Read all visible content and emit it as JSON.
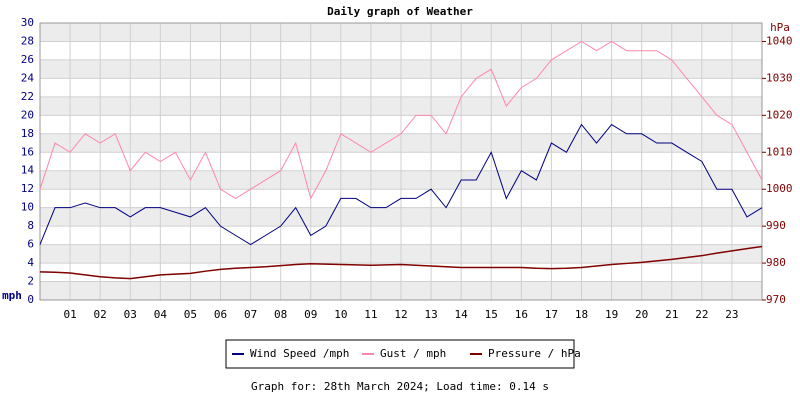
{
  "chart_data": {
    "type": "line",
    "title": "Daily graph of Weather",
    "y_label": "mph",
    "y2_label": "hPa",
    "footer": "Graph for: 28th March 2024; Load time: 0.14 s",
    "x": [
      0,
      0.5,
      1,
      1.5,
      2,
      2.5,
      3,
      3.5,
      4,
      4.5,
      5,
      5.5,
      6,
      6.5,
      7,
      7.5,
      8,
      8.5,
      9,
      9.5,
      10,
      10.5,
      11,
      11.5,
      12,
      12.5,
      13,
      13.5,
      14,
      14.5,
      15,
      15.5,
      16,
      16.5,
      17,
      17.5,
      18,
      18.5,
      19,
      19.5,
      20,
      20.5,
      21,
      21.5,
      22,
      22.5,
      23,
      23.5,
      24
    ],
    "xlim": [
      0,
      24
    ],
    "xticks": [
      {
        "value": 1,
        "label": "01"
      },
      {
        "value": 2,
        "label": "02"
      },
      {
        "value": 3,
        "label": "03"
      },
      {
        "value": 4,
        "label": "04"
      },
      {
        "value": 5,
        "label": "05"
      },
      {
        "value": 6,
        "label": "06"
      },
      {
        "value": 7,
        "label": "07"
      },
      {
        "value": 8,
        "label": "08"
      },
      {
        "value": 9,
        "label": "09"
      },
      {
        "value": 10,
        "label": "10"
      },
      {
        "value": 11,
        "label": "11"
      },
      {
        "value": 12,
        "label": "12"
      },
      {
        "value": 13,
        "label": "13"
      },
      {
        "value": 14,
        "label": "14"
      },
      {
        "value": 15,
        "label": "15"
      },
      {
        "value": 16,
        "label": "16"
      },
      {
        "value": 17,
        "label": "17"
      },
      {
        "value": 18,
        "label": "18"
      },
      {
        "value": 19,
        "label": "19"
      },
      {
        "value": 20,
        "label": "20"
      },
      {
        "value": 21,
        "label": "21"
      },
      {
        "value": 22,
        "label": "22"
      },
      {
        "value": 23,
        "label": "23"
      }
    ],
    "ylim": [
      0,
      30
    ],
    "yticks": [
      0,
      2,
      4,
      6,
      8,
      10,
      12,
      14,
      16,
      18,
      20,
      22,
      24,
      26,
      28,
      30
    ],
    "y2lim": [
      970,
      1045
    ],
    "y2ticks": [
      970,
      980,
      990,
      1000,
      1010,
      1020,
      1030,
      1040
    ],
    "series": [
      {
        "name": "Wind Speed /mph",
        "color": "#000080",
        "values": [
          6,
          10,
          10,
          10.5,
          10,
          10,
          9,
          10,
          10,
          9.5,
          9,
          10,
          8,
          7,
          6,
          7,
          8,
          10,
          7,
          8,
          11,
          11,
          10,
          10,
          11,
          11,
          12,
          10,
          13,
          13,
          16,
          11,
          14,
          13,
          17,
          16,
          19,
          17,
          19,
          18,
          18,
          17,
          17,
          16,
          15,
          12,
          12,
          9,
          10
        ]
      },
      {
        "name": "Gust / mph",
        "color": "#ff88aa",
        "values": [
          12,
          17,
          16,
          18,
          17,
          18,
          14,
          16,
          15,
          16,
          13,
          16,
          12,
          11,
          12,
          13,
          14,
          17,
          11,
          14,
          18,
          17,
          16,
          17,
          18,
          20,
          20,
          18,
          22,
          24,
          25,
          21,
          23,
          24,
          26,
          27,
          28,
          27,
          28,
          27,
          27,
          27,
          26,
          24,
          22,
          20,
          19,
          16,
          13
        ]
      },
      {
        "name": "Pressure / hPa",
        "color": "#800000",
        "axis": "y2",
        "values": [
          977.6,
          977.5,
          977.3,
          976.8,
          976.3,
          976,
          975.8,
          976.3,
          976.8,
          977,
          977.2,
          977.8,
          978.3,
          978.6,
          978.8,
          979,
          979.3,
          979.6,
          979.8,
          979.7,
          979.6,
          979.5,
          979.4,
          979.5,
          979.6,
          979.4,
          979.2,
          979,
          978.8,
          978.8,
          978.8,
          978.8,
          978.8,
          978.6,
          978.5,
          978.6,
          978.8,
          979.2,
          979.6,
          979.9,
          980.2,
          980.6,
          981,
          981.5,
          982,
          982.7,
          983.3,
          983.9,
          984.5
        ]
      }
    ]
  }
}
